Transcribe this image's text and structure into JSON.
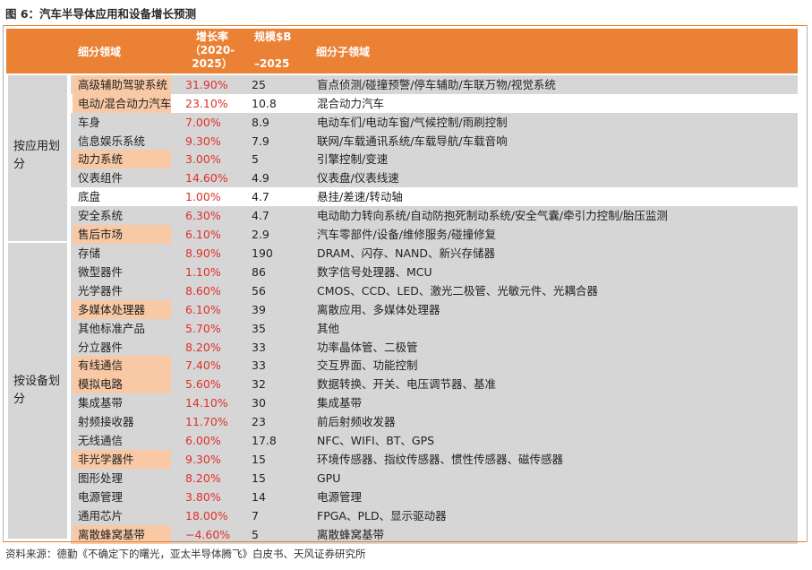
{
  "figure_title": "图 6：汽车半导体应用和设备增长预测",
  "header": {
    "col1": "细分领域",
    "col2": "增长率（2020-2025）",
    "col3": "规模$B\n–2025",
    "col4": "细分子领域",
    "col2_lines": [
      "增长率",
      "（2020-",
      "2025）"
    ],
    "col3_lines": [
      "规模$B",
      "",
      "–2025"
    ]
  },
  "groups": [
    {
      "label_lines": [
        "按应用划",
        "分"
      ]
    },
    {
      "label_lines": [
        "按设备划",
        "分"
      ]
    }
  ],
  "rows": [
    {
      "field": "高级辅助驾驶系统",
      "growth": "31.90%",
      "size": "25",
      "sub": "盲点侦测/碰撞预警/停车辅助/车联万物/视觉系统"
    },
    {
      "field": "电动/混合动力汽车",
      "growth": "23.10%",
      "size": "10.8",
      "sub": "混合动力汽车"
    },
    {
      "field": "车身",
      "growth": "7.00%",
      "size": "8.9",
      "sub": "电动车们/电动车窗/气候控制/雨刷控制"
    },
    {
      "field": "信息娱乐系统",
      "growth": "9.30%",
      "size": "7.9",
      "sub": "联网/车载通讯系统/车载导航/车载音响"
    },
    {
      "field": "动力系统",
      "growth": "3.00%",
      "size": "5",
      "sub": "引擎控制/变速"
    },
    {
      "field": "仪表组件",
      "growth": "14.60%",
      "size": "4.9",
      "sub": "仪表盘/仪表线速"
    },
    {
      "field": "底盘",
      "growth": "1.00%",
      "size": "4.7",
      "sub": "悬挂/差速/转动轴"
    },
    {
      "field": "安全系统",
      "growth": "6.30%",
      "size": "4.7",
      "sub": "电动助力转向系统/自动防抱死制动系统/安全气囊/牵引力控制/胎压监测"
    },
    {
      "field": "售后市场",
      "growth": "6.10%",
      "size": "2.9",
      "sub": "汽车零部件/设备/维修服务/碰撞修复"
    },
    {
      "field": "存储",
      "growth": "8.90%",
      "size": "190",
      "sub": "DRAM、闪存、NAND、新兴存储器"
    },
    {
      "field": "微型器件",
      "growth": "1.10%",
      "size": "86",
      "sub": "数字信号处理器、MCU"
    },
    {
      "field": "光学器件",
      "growth": "8.60%",
      "size": "56",
      "sub": "CMOS、CCD、LED、激光二极管、光敏元件、光耦合器"
    },
    {
      "field": "多媒体处理器",
      "growth": "6.10%",
      "size": "39",
      "sub": "离散应用、多媒体处理器"
    },
    {
      "field": "其他标准产品",
      "growth": "5.70%",
      "size": "35",
      "sub": "其他"
    },
    {
      "field": "分立器件",
      "growth": "8.20%",
      "size": "33",
      "sub": "功率晶体管、二极管"
    },
    {
      "field": "有线通信",
      "growth": "7.40%",
      "size": "33",
      "sub": "交互界面、功能控制"
    },
    {
      "field": "模拟电路",
      "growth": "5.60%",
      "size": "32",
      "sub": "数据转换、开关、电压调节器、基准"
    },
    {
      "field": "集成基带",
      "growth": "14.10%",
      "size": "30",
      "sub": "集成基带"
    },
    {
      "field": "射频接收器",
      "growth": "11.70%",
      "size": "23",
      "sub": "前后射频收发器"
    },
    {
      "field": "无线通信",
      "growth": "6.00%",
      "size": "17.8",
      "sub": "NFC、WIFI、BT、GPS"
    },
    {
      "field": "非光学器件",
      "growth": "9.30%",
      "size": "15",
      "sub": "环境传感器、指纹传感器、惯性传感器、磁传感器"
    },
    {
      "field": "图形处理",
      "growth": "8.20%",
      "size": "15",
      "sub": "GPU"
    },
    {
      "field": "电源管理",
      "growth": "3.80%",
      "size": "14",
      "sub": "电源管理"
    },
    {
      "field": "通用芯片",
      "growth": "18.00%",
      "size": "7",
      "sub": "FPGA、PLD、显示驱动器"
    },
    {
      "field": "离散蜂窝基带",
      "growth": "−4.60%",
      "size": "5",
      "sub": "离散蜂窝基带"
    }
  ],
  "source": "资料来源：德勤《不确定下的曙光，亚太半导体腾飞》白皮书、天风证券研究所",
  "colors": {
    "header_bg": "#ea8134",
    "growth_text": "#e0302a",
    "row_shade": "#d6d6d6",
    "field_highlight": "#f8c9a4"
  }
}
